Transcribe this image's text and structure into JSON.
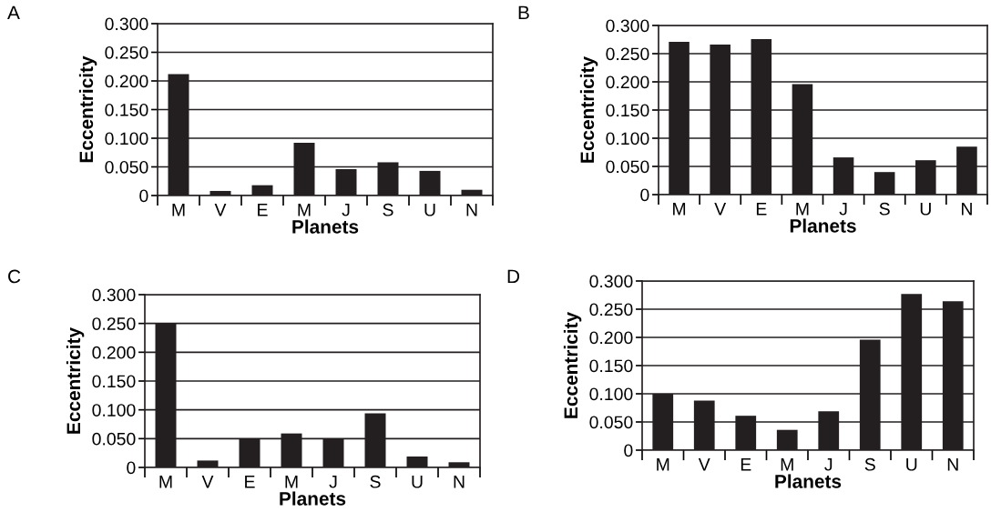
{
  "chart_data": [
    {
      "type": "bar",
      "title": "A",
      "xlabel": "Planets",
      "ylabel": "Eccentricity",
      "categories": [
        "M",
        "V",
        "E",
        "M",
        "J",
        "S",
        "U",
        "N"
      ],
      "values": [
        0.212,
        0.008,
        0.018,
        0.092,
        0.046,
        0.058,
        0.043,
        0.01
      ],
      "color": "#231f20",
      "ylim": [
        0,
        0.3
      ],
      "yticks": [
        0,
        {
          "value": 0.05,
          "label": "0.050"
        },
        {
          "value": 0.1,
          "label": "0.100"
        },
        {
          "value": 0.15,
          "label": "0.150"
        },
        {
          "value": 0.2,
          "label": "0.200"
        },
        {
          "value": 0.25,
          "label": "0.250"
        },
        {
          "value": 0.3,
          "label": "0.300"
        }
      ],
      "grid": "y"
    },
    {
      "type": "bar",
      "title": "B",
      "xlabel": "Planets",
      "ylabel": "Eccentricity",
      "categories": [
        "M",
        "V",
        "E",
        "M",
        "J",
        "S",
        "U",
        "N"
      ],
      "values": [
        0.271,
        0.266,
        0.276,
        0.196,
        0.066,
        0.04,
        0.061,
        0.085
      ],
      "color": "#231f20",
      "ylim": [
        0,
        0.3
      ],
      "yticks": [
        0,
        {
          "value": 0.05,
          "label": "0.050"
        },
        {
          "value": 0.1,
          "label": "0.100"
        },
        {
          "value": 0.15,
          "label": "0.150"
        },
        {
          "value": 0.2,
          "label": "0.200"
        },
        {
          "value": 0.25,
          "label": "0.250"
        },
        {
          "value": 0.3,
          "label": "0.300"
        }
      ],
      "grid": "y"
    },
    {
      "type": "bar",
      "title": "C",
      "xlabel": "Planets",
      "ylabel": "Eccentricity",
      "categories": [
        "M",
        "V",
        "E",
        "M",
        "J",
        "S",
        "U",
        "N"
      ],
      "values": [
        0.25,
        0.012,
        0.05,
        0.059,
        0.05,
        0.094,
        0.019,
        0.009
      ],
      "color": "#231f20",
      "ylim": [
        0,
        0.3
      ],
      "yticks": [
        0,
        {
          "value": 0.05,
          "label": "0.050"
        },
        {
          "value": 0.1,
          "label": "0.100"
        },
        {
          "value": 0.15,
          "label": "0.150"
        },
        {
          "value": 0.2,
          "label": "0.200"
        },
        {
          "value": 0.25,
          "label": "0.250"
        },
        {
          "value": 0.3,
          "label": "0.300"
        }
      ],
      "grid": "y"
    },
    {
      "type": "bar",
      "title": "D",
      "xlabel": "Planets",
      "ylabel": "Eccentricity",
      "categories": [
        "M",
        "V",
        "E",
        "M",
        "J",
        "S",
        "U",
        "N"
      ],
      "values": [
        0.1,
        0.088,
        0.061,
        0.036,
        0.069,
        0.196,
        0.277,
        0.264
      ],
      "color": "#231f20",
      "ylim": [
        0,
        0.3
      ],
      "yticks": [
        0,
        {
          "value": 0.05,
          "label": "0.050"
        },
        {
          "value": 0.1,
          "label": "0.100"
        },
        {
          "value": 0.15,
          "label": "0.150"
        },
        {
          "value": 0.2,
          "label": "0.200"
        },
        {
          "value": 0.25,
          "label": "0.250"
        },
        {
          "value": 0.3,
          "label": "0.300"
        }
      ],
      "grid": "y"
    }
  ]
}
